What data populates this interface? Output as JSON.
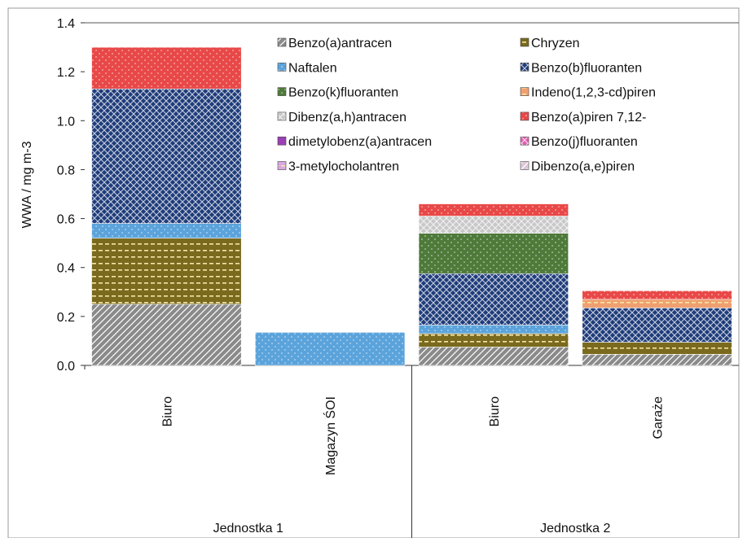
{
  "chart_data": {
    "type": "bar",
    "stacked": true,
    "ylabel": "WWA / mg m-3",
    "ylim": [
      0,
      1.4
    ],
    "yticks": [
      "0.0",
      "0.2",
      "0.4",
      "0.6",
      "0.8",
      "1.0",
      "1.2",
      "1.4"
    ],
    "grid": false,
    "legend_position": "top-right",
    "categories": [
      "Biuro",
      "Magazyn ŚOI",
      "Biuro",
      "Garaże"
    ],
    "groups": [
      {
        "label": "Jednostka 1",
        "categories": [
          0,
          1
        ]
      },
      {
        "label": "Jednostka 2",
        "categories": [
          2,
          3
        ]
      }
    ],
    "series": [
      {
        "name": "Benzo(a)antracen",
        "values": [
          0.25,
          0,
          0.075,
          0.045
        ],
        "color": "#8a8a8a",
        "pattern": "diag"
      },
      {
        "name": "Chryzen",
        "values": [
          0.27,
          0,
          0.055,
          0.05
        ],
        "color": "#7a6a1e",
        "pattern": "dash"
      },
      {
        "name": "Naftalen",
        "values": [
          0.06,
          0.135,
          0.035,
          0.0
        ],
        "color": "#5ba3db",
        "pattern": "dots"
      },
      {
        "name": "Benzo(b)fluoranten",
        "values": [
          0.55,
          0,
          0.21,
          0.14
        ],
        "color": "#1f3c7a",
        "pattern": "cross"
      },
      {
        "name": "Benzo(k)fluoranten",
        "values": [
          0,
          0,
          0.165,
          0.0
        ],
        "color": "#4e7a3a",
        "pattern": "dots"
      },
      {
        "name": "Indeno(1,2,3-cd)piren",
        "values": [
          0,
          0,
          0,
          0.035
        ],
        "color": "#f0a070",
        "pattern": "dash"
      },
      {
        "name": "Dibenz(a,h)antracen",
        "values": [
          0,
          0,
          0.07,
          0.0
        ],
        "color": "#c8c8c8",
        "pattern": "cross"
      },
      {
        "name": "Benzo(a)piren 7,12-",
        "values": [
          0.17,
          0,
          0.05,
          0.035
        ],
        "color": "#e84848",
        "pattern": "dots"
      },
      {
        "name": "dimetylobenz(a)antracen",
        "values": [
          0,
          0,
          0,
          0
        ],
        "color": "#9b3fb5",
        "pattern": "none"
      },
      {
        "name": "Benzo(j)fluoranten",
        "values": [
          0,
          0,
          0,
          0
        ],
        "color": "#e060b0",
        "pattern": "cross"
      },
      {
        "name": "3-metylocholantren",
        "values": [
          0,
          0,
          0,
          0
        ],
        "color": "#d9a8e0",
        "pattern": "dash"
      },
      {
        "name": "Dibenzo(a,e)piren",
        "values": [
          0,
          0,
          0,
          0
        ],
        "color": "#dcc8d8",
        "pattern": "diag"
      }
    ]
  }
}
